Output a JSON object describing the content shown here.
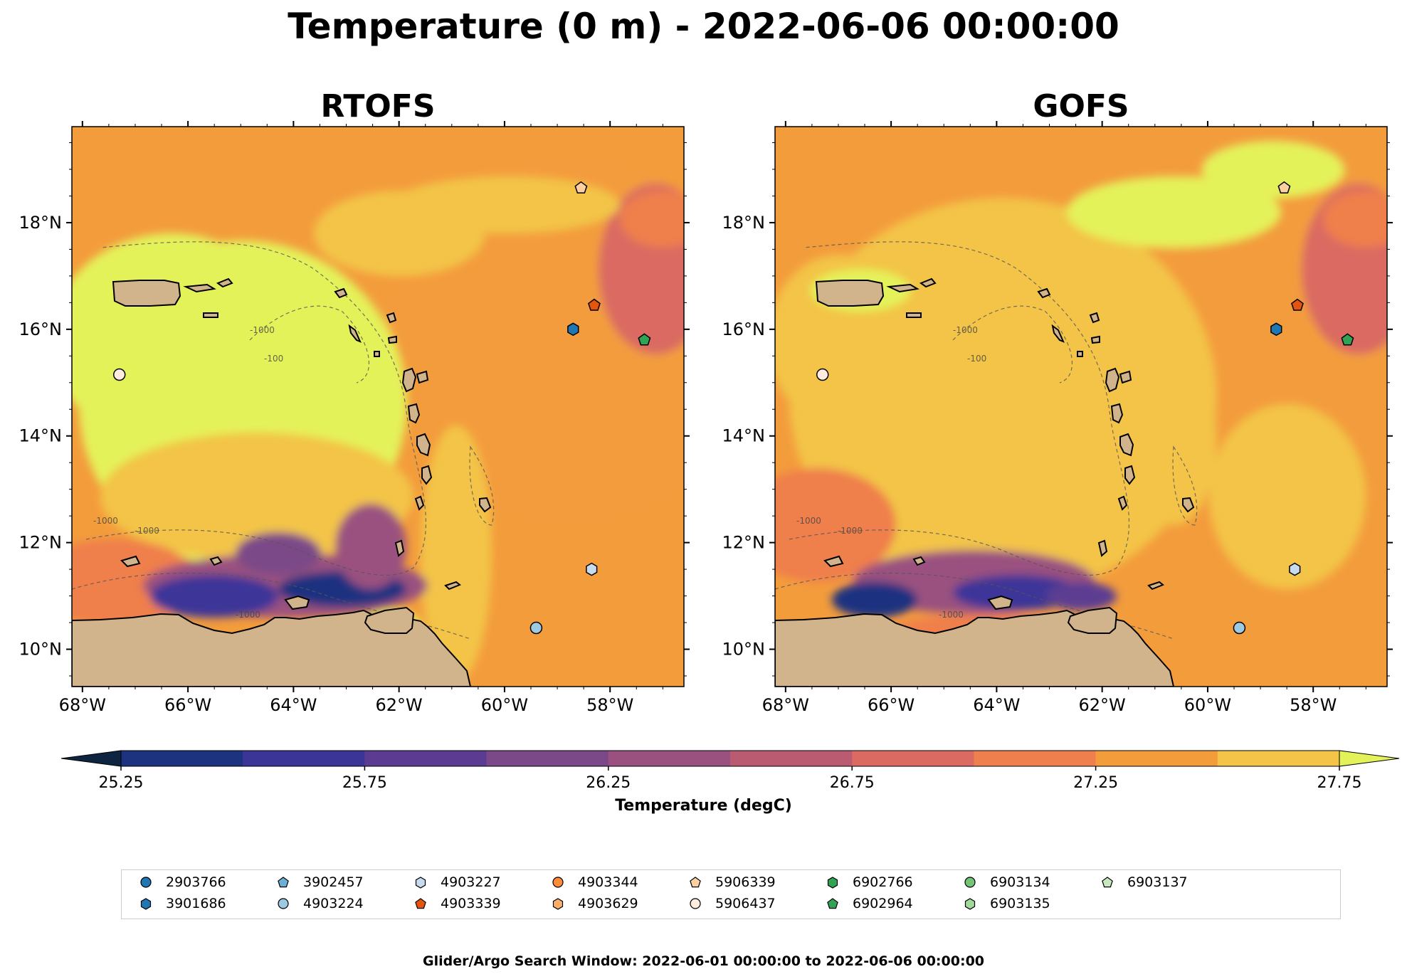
{
  "main_title": "Temperature (0 m) - 2022-06-06 00:00:00",
  "panels": [
    {
      "title": "RTOFS",
      "variant": "rtofs"
    },
    {
      "title": "GOFS",
      "variant": "gofs"
    }
  ],
  "axes": {
    "lon_ticks": [
      "68°W",
      "66°W",
      "64°W",
      "62°W",
      "60°W",
      "58°W"
    ],
    "lat_ticks": [
      "18°N",
      "16°N",
      "14°N",
      "12°N",
      "10°N"
    ],
    "lon_range": [
      -68.2,
      -56.6
    ],
    "lat_range": [
      9.3,
      19.8
    ]
  },
  "colorbar": {
    "label": "Temperature (degC)",
    "ticks": [
      "25.25",
      "25.75",
      "26.25",
      "26.75",
      "27.25",
      "27.75"
    ],
    "levels": [
      25.25,
      25.5,
      25.75,
      26.0,
      26.25,
      26.5,
      26.75,
      27.0,
      27.25,
      27.5,
      27.75,
      28.0
    ],
    "colors": [
      "#0d2540",
      "#1d3380",
      "#3c3598",
      "#5b3c92",
      "#7b4888",
      "#9a517f",
      "#bb5b72",
      "#da6a62",
      "#ef7f4c",
      "#f39c3c",
      "#f3c447",
      "#e4f25a"
    ],
    "extend": "both"
  },
  "bathymetry_contours": [
    "-100",
    "-1000"
  ],
  "colors": {
    "land": "#d2b48c",
    "lakes": "#97b6e1"
  },
  "floats": [
    {
      "id": "2903766",
      "marker": "circle",
      "color": "#1f77b4"
    },
    {
      "id": "3901686",
      "marker": "hexagon",
      "color": "#1f77b4",
      "lon": -58.7,
      "lat": 16.0
    },
    {
      "id": "3902457",
      "marker": "pentagon",
      "color": "#6baed6"
    },
    {
      "id": "4903224",
      "marker": "circle",
      "color": "#9ecae1",
      "lon": -59.4,
      "lat": 10.4
    },
    {
      "id": "4903227",
      "marker": "hexagon",
      "color": "#c6dbef",
      "lon": -58.35,
      "lat": 11.5
    },
    {
      "id": "4903339",
      "marker": "pentagon",
      "color": "#e6550d",
      "lon": -58.3,
      "lat": 16.45
    },
    {
      "id": "4903344",
      "marker": "circle",
      "color": "#fd8d3c"
    },
    {
      "id": "4903629",
      "marker": "hexagon",
      "color": "#fdae6b"
    },
    {
      "id": "5906339",
      "marker": "pentagon",
      "color": "#fdd0a2",
      "lon": -58.55,
      "lat": 18.65
    },
    {
      "id": "5906437",
      "marker": "circle",
      "color": "#feedde",
      "lon": -67.3,
      "lat": 15.15
    },
    {
      "id": "6902766",
      "marker": "hexagon",
      "color": "#31a354"
    },
    {
      "id": "6902964",
      "marker": "pentagon",
      "color": "#31a354",
      "lon": -57.35,
      "lat": 15.8
    },
    {
      "id": "6903134",
      "marker": "circle",
      "color": "#74c476"
    },
    {
      "id": "6903135",
      "marker": "hexagon",
      "color": "#a1d99b"
    },
    {
      "id": "6903137",
      "marker": "pentagon",
      "color": "#c7e9c0"
    }
  ],
  "footer": "Glider/Argo Search Window: 2022-06-01 00:00:00 to 2022-06-06 00:00:00"
}
